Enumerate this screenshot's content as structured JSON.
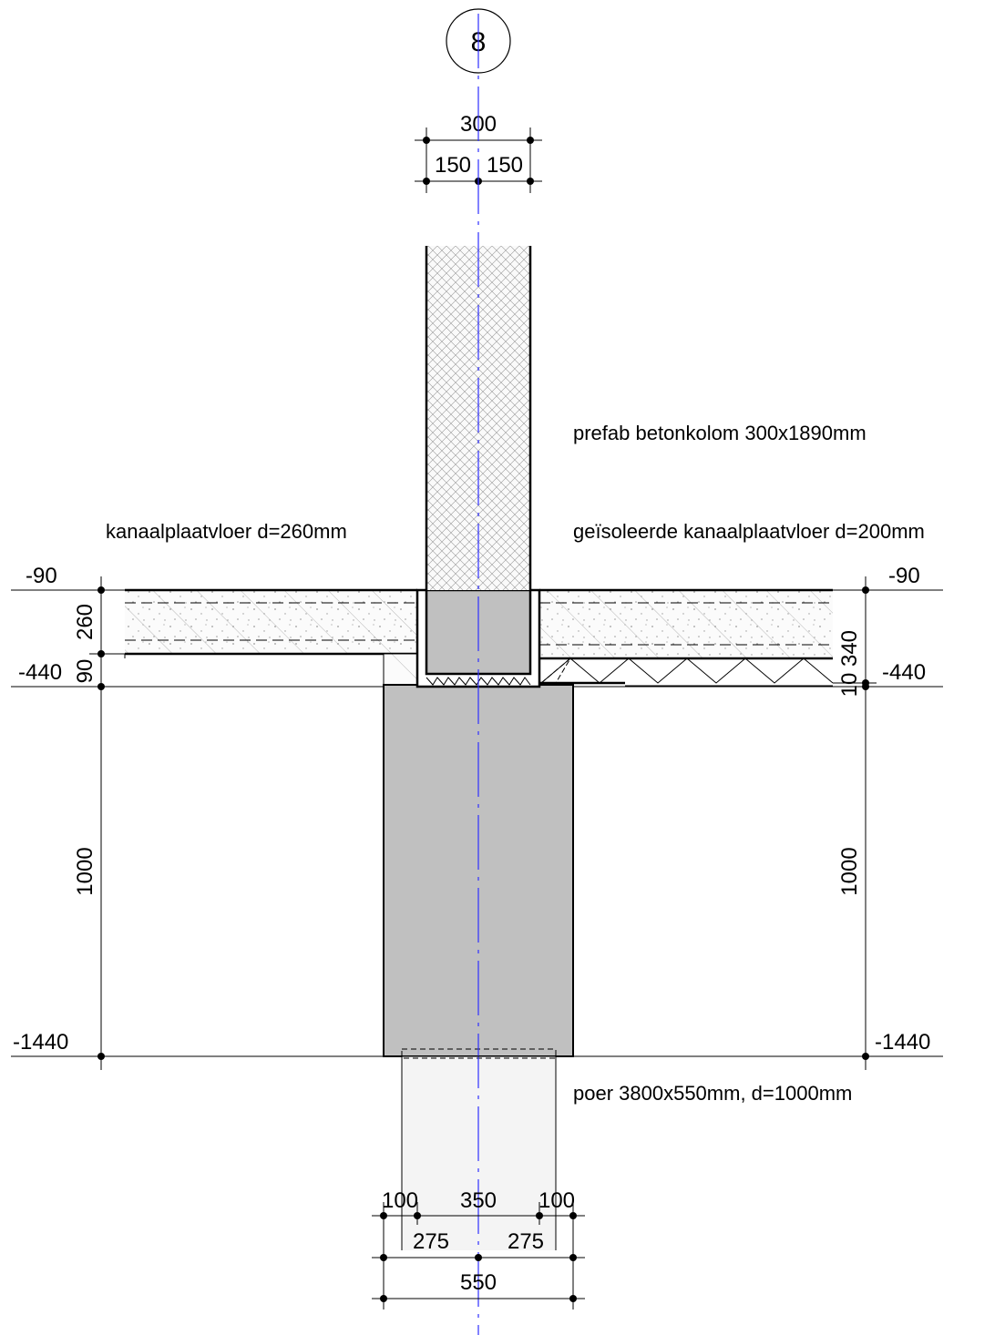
{
  "grid": {
    "label": "8"
  },
  "top_dims": {
    "total": "300",
    "left": "150",
    "right": "150"
  },
  "bottom_dims": {
    "row1": [
      "100",
      "350",
      "100"
    ],
    "row2": [
      "275",
      "275"
    ],
    "row3": "550"
  },
  "levels": {
    "left": [
      "-90",
      "-440",
      "-1440"
    ],
    "right": [
      "-90",
      "-440",
      "-1440"
    ]
  },
  "vertical_dims": {
    "left": [
      "260",
      "90",
      "1000"
    ],
    "right": [
      "340",
      "10",
      "1000"
    ]
  },
  "labels": {
    "column": "prefab betonkolom 300x1890mm",
    "floor_left": "kanaalplaatvloer d=260mm",
    "floor_right": "geïsoleerde kanaalplaatvloer d=200mm",
    "foundation": "poer 3800x550mm, d=1000mm"
  },
  "colors": {
    "concrete": "#c0c0c0",
    "pile": "#f4f4f4",
    "axis": "#3030ff"
  }
}
